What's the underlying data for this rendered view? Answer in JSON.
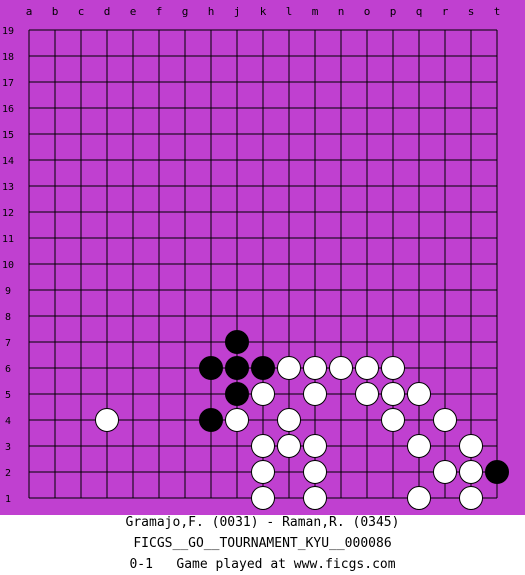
{
  "board": {
    "size": 19,
    "board_color": "#C040D0",
    "line_color": "#000000",
    "column_labels": [
      "a",
      "b",
      "c",
      "d",
      "e",
      "f",
      "g",
      "h",
      "j",
      "k",
      "l",
      "m",
      "n",
      "o",
      "p",
      "q",
      "r",
      "s",
      "t"
    ],
    "row_labels": [
      "1",
      "2",
      "3",
      "4",
      "5",
      "6",
      "7",
      "8",
      "9",
      "10",
      "11",
      "12",
      "13",
      "14",
      "15",
      "16",
      "17",
      "18",
      "19"
    ],
    "stones": [
      {
        "color": "black",
        "point": "j7"
      },
      {
        "color": "black",
        "point": "h6"
      },
      {
        "color": "black",
        "point": "j6"
      },
      {
        "color": "black",
        "point": "k6"
      },
      {
        "color": "black",
        "point": "j5"
      },
      {
        "color": "black",
        "point": "h4"
      },
      {
        "color": "black",
        "point": "t2"
      },
      {
        "color": "white",
        "point": "l6"
      },
      {
        "color": "white",
        "point": "m6"
      },
      {
        "color": "white",
        "point": "n6"
      },
      {
        "color": "white",
        "point": "o6"
      },
      {
        "color": "white",
        "point": "p6"
      },
      {
        "color": "white",
        "point": "k5"
      },
      {
        "color": "white",
        "point": "m5"
      },
      {
        "color": "white",
        "point": "o5"
      },
      {
        "color": "white",
        "point": "p5"
      },
      {
        "color": "white",
        "point": "q5"
      },
      {
        "color": "white",
        "point": "d4"
      },
      {
        "color": "white",
        "point": "j4"
      },
      {
        "color": "white",
        "point": "l4"
      },
      {
        "color": "white",
        "point": "p4"
      },
      {
        "color": "white",
        "point": "r4"
      },
      {
        "color": "white",
        "point": "k3"
      },
      {
        "color": "white",
        "point": "l3"
      },
      {
        "color": "white",
        "point": "m3"
      },
      {
        "color": "white",
        "point": "q3"
      },
      {
        "color": "white",
        "point": "s3"
      },
      {
        "color": "white",
        "point": "k2"
      },
      {
        "color": "white",
        "point": "m2"
      },
      {
        "color": "white",
        "point": "r2"
      },
      {
        "color": "white",
        "point": "s2"
      },
      {
        "color": "white",
        "point": "k1"
      },
      {
        "color": "white",
        "point": "m1"
      },
      {
        "color": "white",
        "point": "q1"
      },
      {
        "color": "white",
        "point": "s1"
      }
    ]
  },
  "game": {
    "players_line": "Gramajo,F. (0031) - Raman,R. (0345)",
    "event_line": "FICGS__GO__TOURNAMENT_KYU__000086",
    "result_line": "0-1   Game played at www.ficgs.com"
  }
}
